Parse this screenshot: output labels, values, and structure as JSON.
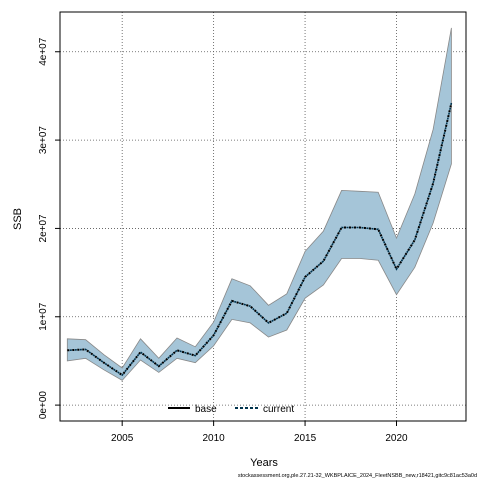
{
  "chart_data": {
    "type": "area",
    "xlabel": "Years",
    "ylabel": "SSB",
    "x_ticks": [
      2005,
      2010,
      2015,
      2020
    ],
    "y_ticks": [
      0,
      10000000,
      20000000,
      30000000,
      40000000
    ],
    "y_tick_labels": [
      "0e+00",
      "1e+07",
      "2e+07",
      "3e+07",
      "4e+07"
    ],
    "xlim": [
      2001.6,
      2023.8
    ],
    "ylim": [
      -1800000,
      44500000
    ],
    "grid": true,
    "legend_position": "bottom-center",
    "x": [
      2002,
      2003,
      2004,
      2005,
      2006,
      2007,
      2008,
      2009,
      2010,
      2011,
      2012,
      2013,
      2014,
      2015,
      2016,
      2017,
      2018,
      2019,
      2020,
      2021,
      2022,
      2023
    ],
    "series": [
      {
        "name": "base",
        "values": [
          6200000,
          6300000,
          4800000,
          3400000,
          6000000,
          4400000,
          6200000,
          5600000,
          7900000,
          11800000,
          11200000,
          9300000,
          10400000,
          14500000,
          16300000,
          20100000,
          20100000,
          19900000,
          15400000,
          18700000,
          25100000,
          34200000
        ],
        "lower": [
          5000000,
          5300000,
          4000000,
          2800000,
          5100000,
          3700000,
          5300000,
          4800000,
          6700000,
          9700000,
          9300000,
          7700000,
          8500000,
          12100000,
          13600000,
          16600000,
          16600000,
          16400000,
          12500000,
          15600000,
          20600000,
          27300000
        ],
        "upper": [
          7500000,
          7400000,
          5700000,
          4200000,
          7500000,
          5300000,
          7600000,
          6600000,
          9400000,
          14300000,
          13500000,
          11300000,
          12600000,
          17400000,
          19700000,
          24300000,
          24200000,
          24100000,
          18900000,
          23900000,
          31200000,
          42700000
        ]
      },
      {
        "name": "current",
        "values": [
          6200000,
          6300000,
          4800000,
          3400000,
          6000000,
          4400000,
          6200000,
          5600000,
          7900000,
          11800000,
          11200000,
          9300000,
          10400000,
          14500000,
          16300000,
          20100000,
          20100000,
          19900000,
          15400000,
          18700000,
          25100000,
          34200000
        ]
      }
    ],
    "colors": {
      "band_fill": "#a5c5d8",
      "band_stroke": "#888888",
      "base": "#000000",
      "current": "#00334d"
    }
  },
  "footer_text": "stockassessment.org,ple.27.21-32_WKBPLAICE_2024_FleetNSBB_new,r18421,gitc9c81ac53a0d"
}
